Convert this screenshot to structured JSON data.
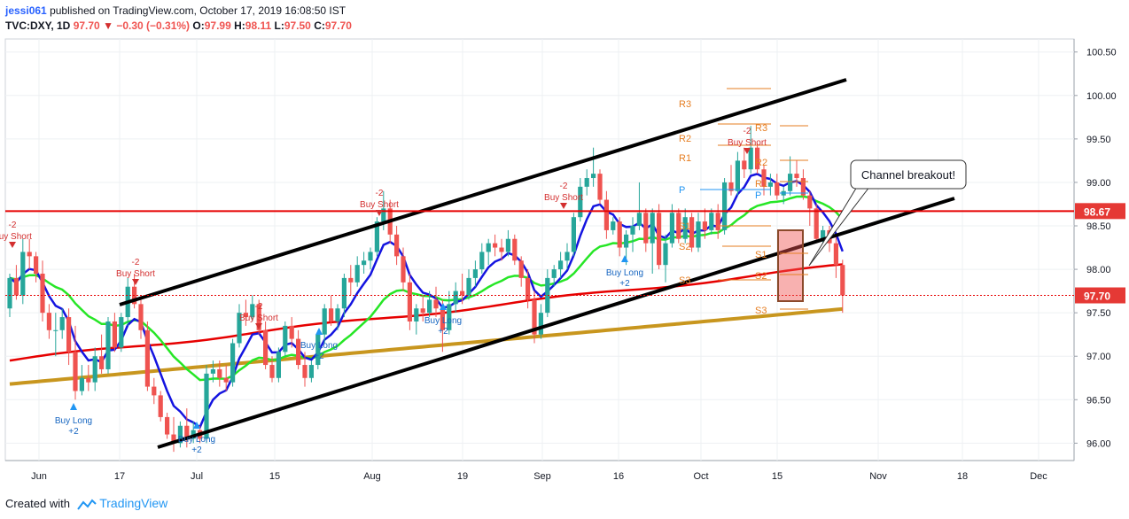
{
  "header": {
    "author": "jessi061",
    "published_text": "published on TradingView.com, October 17, 2019 16:08:50 IST"
  },
  "ohlc_line": {
    "symbol": "TVC:DXY, 1D",
    "last": "97.70",
    "change": "−0.30 (−0.31%)",
    "o_label": "O:",
    "o": "97.99",
    "h_label": "H:",
    "h": "98.11",
    "l_label": "L:",
    "l": "97.50",
    "c_label": "C:",
    "c": "97.70"
  },
  "footer": {
    "created_with": "Created with",
    "brand": "TradingView"
  },
  "colors": {
    "up": "#26a69a",
    "down": "#ef5350",
    "ema_fast": "#1414e0",
    "ema_mid": "#26e626",
    "ema_slow": "#e60000",
    "sma_long": "#c8961e",
    "channel": "#000000",
    "resistance": "#e60000",
    "pivot": "#e67e22",
    "arrow_long": "#2196f3"
  },
  "chart_data": {
    "type": "candlestick",
    "ylim": [
      95.8,
      100.65
    ],
    "y_ticks": [
      "100.50",
      "100.00",
      "99.50",
      "99.00",
      "98.50",
      "98.00",
      "97.50",
      "97.00",
      "96.50",
      "96.00"
    ],
    "x_ticks": [
      "Jun",
      "17",
      "Jul",
      "15",
      "Aug",
      "19",
      "Sep",
      "16",
      "Oct",
      "15",
      "Nov",
      "18",
      "Dec"
    ],
    "price_labels": {
      "resistance": "98.67",
      "last": "97.70"
    },
    "annotation": "Channel breakout!",
    "candles": [
      [
        97.55,
        97.95,
        97.45,
        97.9
      ],
      [
        97.9,
        98.05,
        97.65,
        97.7
      ],
      [
        97.7,
        98.35,
        97.6,
        98.2
      ],
      [
        98.2,
        98.35,
        98.0,
        98.15
      ],
      [
        98.15,
        98.2,
        97.85,
        97.95
      ],
      [
        97.95,
        98.1,
        97.4,
        97.5
      ],
      [
        97.5,
        97.6,
        97.2,
        97.3
      ],
      [
        97.3,
        97.5,
        97.0,
        97.3
      ],
      [
        97.3,
        97.55,
        97.2,
        97.45
      ],
      [
        97.45,
        97.55,
        96.9,
        97.05
      ],
      [
        97.05,
        97.35,
        96.5,
        96.6
      ],
      [
        96.6,
        96.9,
        96.55,
        96.75
      ],
      [
        96.75,
        96.9,
        96.6,
        96.7
      ],
      [
        96.7,
        97.1,
        96.6,
        97.0
      ],
      [
        97.0,
        97.25,
        96.8,
        96.85
      ],
      [
        96.85,
        97.45,
        96.8,
        97.4
      ],
      [
        97.4,
        97.5,
        97.05,
        97.1
      ],
      [
        97.1,
        97.5,
        97.05,
        97.45
      ],
      [
        97.45,
        97.9,
        97.35,
        97.8
      ],
      [
        97.8,
        97.95,
        97.55,
        97.6
      ],
      [
        97.6,
        97.7,
        97.2,
        97.3
      ],
      [
        97.3,
        97.4,
        96.6,
        96.65
      ],
      [
        96.65,
        96.75,
        96.45,
        96.55
      ],
      [
        96.55,
        96.6,
        96.25,
        96.3
      ],
      [
        96.3,
        96.35,
        96.05,
        96.1
      ],
      [
        96.1,
        96.3,
        95.9,
        96.0
      ],
      [
        96.0,
        96.25,
        95.95,
        96.2
      ],
      [
        96.2,
        96.4,
        95.95,
        96.05
      ],
      [
        96.05,
        96.25,
        96.0,
        96.15
      ],
      [
        96.15,
        96.2,
        96.0,
        96.05
      ],
      [
        96.05,
        96.9,
        96.0,
        96.8
      ],
      [
        96.8,
        96.95,
        96.7,
        96.85
      ],
      [
        96.85,
        96.95,
        96.65,
        96.75
      ],
      [
        96.75,
        96.9,
        96.6,
        96.7
      ],
      [
        96.7,
        97.2,
        96.65,
        97.15
      ],
      [
        97.15,
        97.6,
        97.1,
        97.5
      ],
      [
        97.5,
        97.65,
        97.35,
        97.45
      ],
      [
        97.45,
        97.7,
        97.4,
        97.6
      ],
      [
        97.6,
        97.65,
        97.25,
        97.3
      ],
      [
        97.3,
        97.4,
        96.85,
        96.9
      ],
      [
        96.9,
        97.0,
        96.7,
        96.75
      ],
      [
        96.75,
        97.1,
        96.7,
        97.05
      ],
      [
        97.05,
        97.4,
        97.0,
        97.35
      ],
      [
        97.35,
        97.45,
        97.1,
        97.2
      ],
      [
        97.2,
        97.3,
        96.85,
        96.9
      ],
      [
        96.9,
        97.05,
        96.65,
        96.75
      ],
      [
        96.75,
        96.95,
        96.7,
        96.9
      ],
      [
        96.9,
        97.3,
        96.85,
        97.25
      ],
      [
        97.25,
        97.6,
        97.15,
        97.55
      ],
      [
        97.55,
        97.7,
        97.35,
        97.4
      ],
      [
        97.4,
        97.6,
        97.3,
        97.55
      ],
      [
        97.55,
        97.95,
        97.45,
        97.9
      ],
      [
        97.9,
        98.05,
        97.7,
        97.85
      ],
      [
        97.85,
        98.15,
        97.8,
        98.05
      ],
      [
        98.05,
        98.2,
        97.95,
        98.1
      ],
      [
        98.1,
        98.25,
        98.0,
        98.2
      ],
      [
        98.2,
        98.6,
        98.15,
        98.55
      ],
      [
        98.55,
        98.9,
        98.45,
        98.7
      ],
      [
        98.7,
        98.8,
        98.3,
        98.4
      ],
      [
        98.4,
        98.5,
        98.05,
        98.15
      ],
      [
        98.15,
        98.25,
        97.75,
        97.85
      ],
      [
        97.85,
        97.95,
        97.3,
        97.4
      ],
      [
        97.4,
        97.6,
        97.25,
        97.55
      ],
      [
        97.55,
        97.7,
        97.4,
        97.5
      ],
      [
        97.5,
        97.75,
        97.45,
        97.65
      ],
      [
        97.65,
        97.8,
        97.45,
        97.55
      ],
      [
        97.55,
        97.65,
        97.05,
        97.3
      ],
      [
        97.3,
        97.75,
        97.25,
        97.6
      ],
      [
        97.6,
        97.85,
        97.5,
        97.75
      ],
      [
        97.75,
        97.95,
        97.6,
        97.7
      ],
      [
        97.7,
        98.0,
        97.65,
        97.9
      ],
      [
        97.9,
        98.1,
        97.8,
        98.0
      ],
      [
        98.0,
        98.3,
        97.95,
        98.2
      ],
      [
        98.2,
        98.35,
        98.05,
        98.3
      ],
      [
        98.3,
        98.4,
        98.15,
        98.25
      ],
      [
        98.25,
        98.35,
        98.1,
        98.2
      ],
      [
        98.2,
        98.45,
        98.15,
        98.35
      ],
      [
        98.35,
        98.4,
        98.05,
        98.1
      ],
      [
        98.1,
        98.15,
        97.8,
        97.9
      ],
      [
        97.9,
        98.0,
        97.55,
        97.65
      ],
      [
        97.65,
        97.75,
        97.15,
        97.25
      ],
      [
        97.25,
        97.6,
        97.2,
        97.5
      ],
      [
        97.5,
        98.0,
        97.45,
        97.9
      ],
      [
        97.9,
        98.05,
        97.8,
        98.0
      ],
      [
        98.0,
        98.2,
        97.9,
        98.1
      ],
      [
        98.1,
        98.3,
        98.0,
        98.2
      ],
      [
        98.2,
        98.65,
        98.15,
        98.6
      ],
      [
        98.6,
        99.05,
        98.55,
        98.95
      ],
      [
        98.95,
        99.15,
        98.85,
        99.05
      ],
      [
        99.05,
        99.4,
        98.95,
        99.1
      ],
      [
        99.1,
        99.15,
        98.75,
        98.8
      ],
      [
        98.8,
        98.9,
        98.35,
        98.45
      ],
      [
        98.45,
        98.6,
        98.4,
        98.55
      ],
      [
        98.55,
        98.6,
        98.15,
        98.25
      ],
      [
        98.25,
        98.45,
        98.05,
        98.4
      ],
      [
        98.4,
        98.6,
        98.2,
        98.5
      ],
      [
        98.5,
        99.0,
        98.45,
        98.65
      ],
      [
        98.65,
        98.7,
        98.2,
        98.3
      ],
      [
        98.3,
        98.7,
        97.95,
        98.65
      ],
      [
        98.65,
        98.75,
        98.0,
        98.05
      ],
      [
        98.05,
        98.4,
        97.85,
        98.3
      ],
      [
        98.3,
        98.75,
        98.25,
        98.65
      ],
      [
        98.65,
        98.7,
        98.3,
        98.35
      ],
      [
        98.35,
        98.7,
        98.3,
        98.6
      ],
      [
        98.6,
        98.65,
        98.2,
        98.25
      ],
      [
        98.25,
        98.65,
        98.2,
        98.55
      ],
      [
        98.55,
        98.7,
        98.35,
        98.45
      ],
      [
        98.45,
        98.7,
        98.4,
        98.65
      ],
      [
        98.65,
        98.75,
        98.35,
        98.45
      ],
      [
        98.45,
        99.05,
        98.4,
        99.0
      ],
      [
        99.0,
        99.2,
        98.85,
        98.9
      ],
      [
        98.9,
        99.35,
        98.85,
        99.25
      ],
      [
        99.25,
        99.4,
        99.05,
        99.15
      ],
      [
        99.15,
        99.65,
        99.1,
        99.4
      ],
      [
        99.4,
        99.45,
        99.1,
        99.15
      ],
      [
        99.15,
        99.2,
        98.85,
        98.95
      ],
      [
        98.95,
        99.1,
        98.85,
        99.0
      ],
      [
        99.0,
        99.1,
        98.8,
        98.85
      ],
      [
        98.85,
        98.95,
        98.75,
        98.9
      ],
      [
        98.9,
        99.3,
        98.85,
        99.1
      ],
      [
        99.1,
        99.25,
        98.95,
        99.05
      ],
      [
        99.05,
        99.15,
        98.8,
        98.85
      ],
      [
        98.85,
        98.9,
        98.5,
        98.7
      ],
      [
        98.7,
        98.75,
        98.3,
        98.35
      ],
      [
        98.35,
        98.5,
        98.3,
        98.45
      ],
      [
        98.45,
        98.5,
        98.2,
        98.3
      ],
      [
        98.3,
        98.4,
        97.9,
        98.05
      ],
      [
        98.05,
        98.11,
        97.5,
        97.7
      ]
    ]
  }
}
